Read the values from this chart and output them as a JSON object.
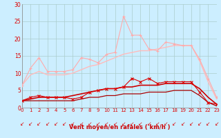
{
  "x": [
    0,
    1,
    2,
    3,
    4,
    5,
    6,
    7,
    8,
    9,
    10,
    11,
    12,
    13,
    14,
    15,
    16,
    17,
    18,
    19,
    20,
    21,
    22,
    23
  ],
  "line_light_pink_marker": [
    6.5,
    11.5,
    14.5,
    10.5,
    10.5,
    10.5,
    11.0,
    14.5,
    14.0,
    13.0,
    15.5,
    16.0,
    26.5,
    21.0,
    21.0,
    17.0,
    16.5,
    19.0,
    18.5,
    18.0,
    18.0,
    14.0,
    8.5,
    3.0
  ],
  "line_smooth_pink": [
    6.5,
    9.5,
    10.5,
    9.5,
    9.5,
    9.5,
    10.0,
    11.0,
    12.0,
    12.5,
    13.5,
    14.5,
    15.5,
    16.0,
    16.5,
    16.5,
    17.0,
    17.5,
    18.0,
    18.0,
    18.0,
    13.5,
    7.5,
    2.5
  ],
  "line_red_marker": [
    2.0,
    3.0,
    3.5,
    3.0,
    3.0,
    3.0,
    2.5,
    3.0,
    4.5,
    5.0,
    5.5,
    5.5,
    6.0,
    8.5,
    7.5,
    8.5,
    7.0,
    7.5,
    7.5,
    7.5,
    7.5,
    4.5,
    1.5,
    1.0
  ],
  "line_red_smooth": [
    2.0,
    2.5,
    3.0,
    3.0,
    3.0,
    3.0,
    3.5,
    4.0,
    4.5,
    5.0,
    5.5,
    5.5,
    6.0,
    6.0,
    6.5,
    6.5,
    6.5,
    7.0,
    7.0,
    7.0,
    7.0,
    5.5,
    3.0,
    1.0
  ],
  "line_dark_red": [
    2.0,
    2.0,
    2.0,
    2.0,
    2.0,
    2.0,
    2.0,
    2.5,
    3.0,
    3.0,
    3.5,
    3.5,
    4.0,
    4.0,
    4.0,
    4.5,
    4.5,
    4.5,
    5.0,
    5.0,
    5.0,
    3.5,
    1.5,
    0.5
  ],
  "xlabel": "Vent moyen/en rafales ( km/h )",
  "ylim": [
    0,
    30
  ],
  "xlim": [
    0,
    23
  ],
  "yticks": [
    0,
    5,
    10,
    15,
    20,
    25,
    30
  ],
  "bg_color": "#cceeff",
  "grid_color": "#aacccc",
  "text_color": "#dd0000",
  "label_color": "#cc0000",
  "color_light_pink": "#ffaaaa",
  "color_smooth_pink": "#ffbbbb",
  "color_red_marker": "#dd0000",
  "color_red_smooth": "#cc0000",
  "color_dark_red": "#aa0000"
}
